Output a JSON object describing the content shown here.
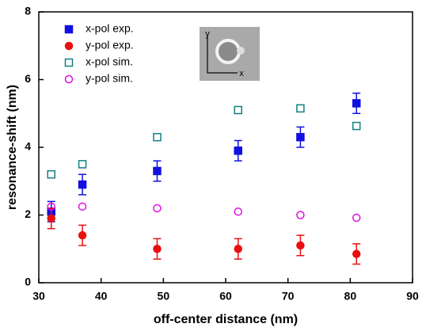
{
  "chart_data": {
    "type": "scatter",
    "x_label": "off-center distance (nm)",
    "y_label": "resonance-shift (nm)",
    "xlim": [
      30,
      90
    ],
    "xticks": [
      30,
      40,
      50,
      60,
      70,
      80,
      90
    ],
    "ylim": [
      0,
      8
    ],
    "yticks": [
      0,
      2,
      4,
      6,
      8
    ],
    "legend": "upper left",
    "inset_axis_labels": [
      "y",
      "x"
    ],
    "series": [
      {
        "name": "x-pol exp.",
        "color": "#1010e0",
        "marker": "filled-square",
        "x": [
          32,
          37,
          49,
          62,
          72,
          81
        ],
        "values": [
          2.1,
          2.9,
          3.3,
          3.9,
          4.3,
          5.3
        ],
        "errors": [
          0.3,
          0.3,
          0.3,
          0.3,
          0.3,
          0.3
        ]
      },
      {
        "name": "y-pol exp.",
        "color": "#e81010",
        "marker": "filled-circle",
        "x": [
          32,
          37,
          49,
          62,
          72,
          81
        ],
        "values": [
          1.9,
          1.4,
          1.0,
          1.0,
          1.1,
          0.85
        ],
        "errors": [
          0.3,
          0.3,
          0.3,
          0.3,
          0.3,
          0.3
        ]
      },
      {
        "name": "x-pol sim.",
        "color": "#118080",
        "marker": "open-square",
        "x": [
          32,
          37,
          49,
          62,
          72,
          81
        ],
        "values": [
          3.2,
          3.5,
          4.3,
          5.1,
          5.15,
          4.63
        ]
      },
      {
        "name": "y-pol sim.",
        "color": "#e010e0",
        "marker": "open-circle",
        "x": [
          32,
          37,
          49,
          62,
          72,
          81
        ],
        "values": [
          2.25,
          2.25,
          2.2,
          2.1,
          2.0,
          1.92
        ]
      }
    ]
  }
}
